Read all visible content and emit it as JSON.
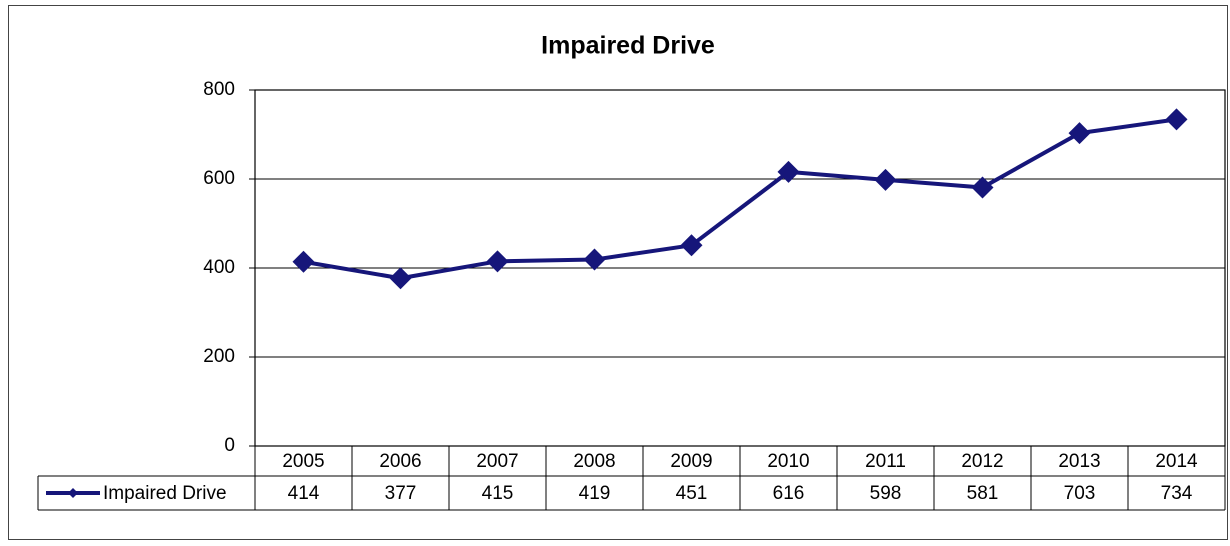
{
  "chart_data": {
    "type": "line",
    "title": "Impaired Drive",
    "categories": [
      "2005",
      "2006",
      "2007",
      "2008",
      "2009",
      "2010",
      "2011",
      "2012",
      "2013",
      "2014"
    ],
    "series": [
      {
        "name": "Impaired Drive",
        "color": "#16167a",
        "values": [
          414,
          377,
          415,
          419,
          451,
          616,
          598,
          581,
          703,
          734
        ]
      }
    ],
    "ylim": [
      0,
      800
    ],
    "yticks": [
      0,
      200,
      400,
      600,
      800
    ],
    "grid": true
  }
}
